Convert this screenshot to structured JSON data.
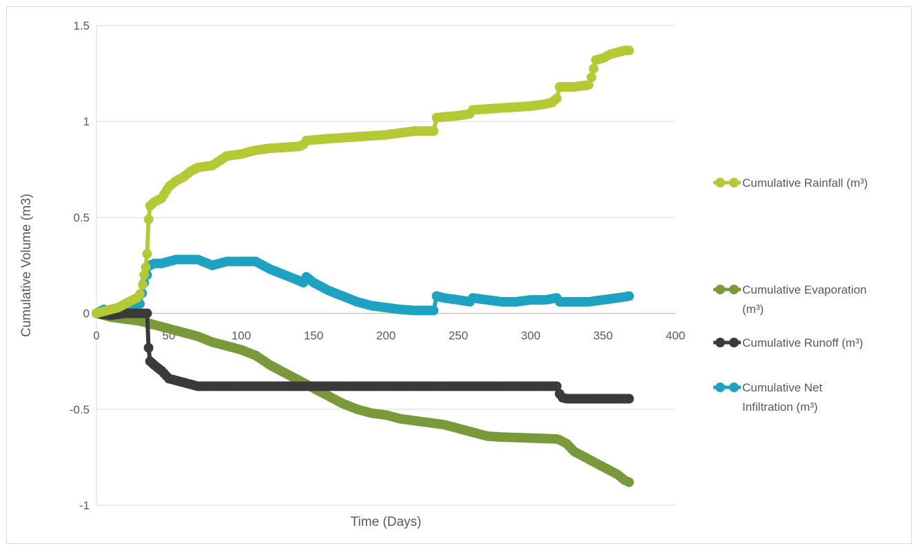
{
  "chart_data": {
    "type": "scatter",
    "title": "",
    "xlabel": "Time (Days)",
    "ylabel": "Cumulative Volume (m3)",
    "xlim": [
      0,
      400
    ],
    "ylim": [
      -1,
      1.5
    ],
    "xticks": [
      0,
      50,
      100,
      150,
      200,
      250,
      300,
      350,
      400
    ],
    "yticks": [
      -1,
      -0.5,
      0,
      0.5,
      1,
      1.5
    ],
    "xtick_labels": [
      "0",
      "50",
      "100",
      "150",
      "200",
      "250",
      "300",
      "350",
      "400"
    ],
    "ytick_labels": [
      "-1",
      "-0.5",
      "0",
      "0.5",
      "1",
      "1.5"
    ],
    "grid": "horizontal",
    "legend_position": "right",
    "series": [
      {
        "name": "Cumulative Rainfall (m³)",
        "color": "#b5c935",
        "x": [
          0,
          10,
          15,
          20,
          25,
          28,
          30,
          32,
          33,
          34,
          35,
          36,
          37,
          40,
          45,
          50,
          55,
          60,
          65,
          70,
          80,
          90,
          100,
          110,
          120,
          130,
          140,
          143,
          145,
          160,
          180,
          200,
          210,
          220,
          233,
          235,
          250,
          258,
          260,
          280,
          300,
          310,
          315,
          318,
          320,
          330,
          340,
          342,
          345,
          350,
          355,
          360,
          365,
          368
        ],
        "y": [
          0,
          0.02,
          0.03,
          0.05,
          0.07,
          0.08,
          0.1,
          0.15,
          0.2,
          0.24,
          0.31,
          0.49,
          0.56,
          0.58,
          0.6,
          0.66,
          0.69,
          0.71,
          0.74,
          0.76,
          0.77,
          0.82,
          0.83,
          0.85,
          0.86,
          0.865,
          0.87,
          0.88,
          0.9,
          0.91,
          0.92,
          0.93,
          0.94,
          0.95,
          0.95,
          1.02,
          1.03,
          1.04,
          1.06,
          1.07,
          1.08,
          1.09,
          1.1,
          1.12,
          1.18,
          1.18,
          1.19,
          1.23,
          1.32,
          1.33,
          1.35,
          1.36,
          1.37,
          1.37
        ]
      },
      {
        "name": "Cumulative Evaporation (m³)",
        "color": "#79993a",
        "x": [
          0,
          10,
          20,
          30,
          40,
          50,
          60,
          70,
          80,
          90,
          100,
          110,
          120,
          130,
          140,
          150,
          160,
          170,
          180,
          190,
          200,
          210,
          220,
          230,
          240,
          250,
          260,
          270,
          280,
          300,
          318,
          320,
          325,
          330,
          335,
          340,
          345,
          350,
          355,
          360,
          365,
          368
        ],
        "y": [
          0,
          -0.02,
          -0.03,
          -0.04,
          -0.06,
          -0.08,
          -0.1,
          -0.12,
          -0.15,
          -0.17,
          -0.19,
          -0.22,
          -0.27,
          -0.31,
          -0.35,
          -0.39,
          -0.43,
          -0.47,
          -0.5,
          -0.52,
          -0.53,
          -0.55,
          -0.56,
          -0.57,
          -0.58,
          -0.6,
          -0.62,
          -0.64,
          -0.645,
          -0.65,
          -0.655,
          -0.66,
          -0.68,
          -0.72,
          -0.74,
          -0.76,
          -0.78,
          -0.8,
          -0.82,
          -0.84,
          -0.87,
          -0.88
        ],
        "labels": []
      },
      {
        "name": "Cumulative Runoff (m³)",
        "color": "#3a3a3a",
        "x": [
          0,
          10,
          20,
          30,
          35,
          36,
          37,
          40,
          45,
          50,
          55,
          60,
          65,
          70,
          100,
          200,
          300,
          318,
          320,
          322,
          325,
          340,
          368
        ],
        "y": [
          0,
          -0.01,
          0,
          0,
          0,
          -0.18,
          -0.25,
          -0.27,
          -0.3,
          -0.34,
          -0.35,
          -0.36,
          -0.37,
          -0.38,
          -0.38,
          -0.38,
          -0.38,
          -0.38,
          -0.42,
          -0.44,
          -0.445,
          -0.445,
          -0.445
        ]
      },
      {
        "name": "Cumulative Net Infiltration (m³)",
        "color": "#1ea2c2",
        "x": [
          0,
          5,
          10,
          15,
          20,
          25,
          30,
          33,
          35,
          37,
          40,
          45,
          50,
          55,
          60,
          65,
          70,
          80,
          90,
          100,
          110,
          115,
          120,
          130,
          140,
          143,
          145,
          150,
          160,
          170,
          180,
          190,
          200,
          210,
          220,
          230,
          233,
          235,
          240,
          250,
          258,
          260,
          270,
          280,
          290,
          300,
          310,
          318,
          320,
          330,
          340,
          350,
          360,
          368
        ],
        "y": [
          0,
          0.02,
          0.01,
          0.0,
          0.03,
          0.04,
          0.05,
          0.16,
          0.2,
          0.25,
          0.26,
          0.26,
          0.27,
          0.28,
          0.28,
          0.28,
          0.28,
          0.25,
          0.27,
          0.27,
          0.27,
          0.25,
          0.23,
          0.2,
          0.17,
          0.16,
          0.19,
          0.16,
          0.12,
          0.09,
          0.06,
          0.04,
          0.03,
          0.02,
          0.015,
          0.015,
          0.015,
          0.09,
          0.08,
          0.07,
          0.06,
          0.08,
          0.07,
          0.06,
          0.06,
          0.07,
          0.07,
          0.08,
          0.06,
          0.06,
          0.06,
          0.07,
          0.08,
          0.09
        ]
      }
    ]
  },
  "legend": {
    "items": [
      {
        "lines": [
          "Cumulative Rainfall (m³)"
        ]
      },
      {
        "lines": [
          "Cumulative Evaporation",
          "(m³)"
        ]
      },
      {
        "lines": [
          "Cumulative Runoff (m³)"
        ]
      },
      {
        "lines": [
          "Cumulative Net",
          "Infiltration (m³)"
        ]
      }
    ]
  }
}
